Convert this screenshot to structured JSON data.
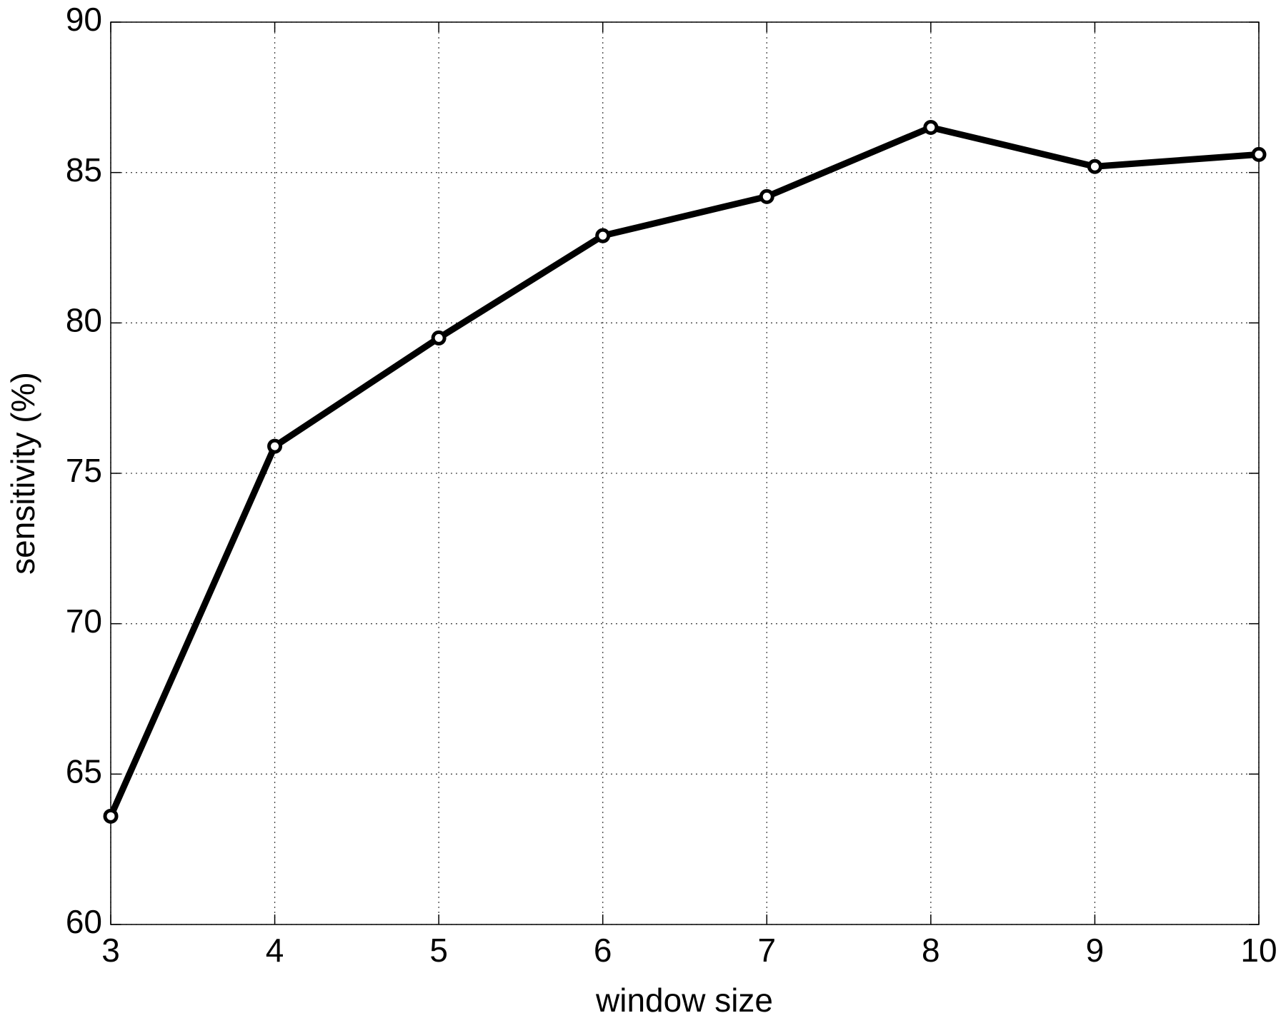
{
  "chart_data": {
    "type": "line",
    "xlabel": "window size",
    "ylabel": "sensitivity (%)",
    "x": [
      3,
      4,
      5,
      6,
      7,
      8,
      9,
      10
    ],
    "series": [
      {
        "color": "#000000",
        "values": [
          63.6,
          75.9,
          79.5,
          82.9,
          84.2,
          86.5,
          85.2,
          85.6
        ]
      }
    ],
    "xlim": [
      3,
      10
    ],
    "xticks": [
      3,
      4,
      5,
      6,
      7,
      8,
      9,
      10
    ],
    "ylim": [
      60,
      90
    ],
    "yticks": [
      60,
      65,
      70,
      75,
      80,
      85,
      90
    ],
    "grid": true,
    "marker": "circle"
  }
}
